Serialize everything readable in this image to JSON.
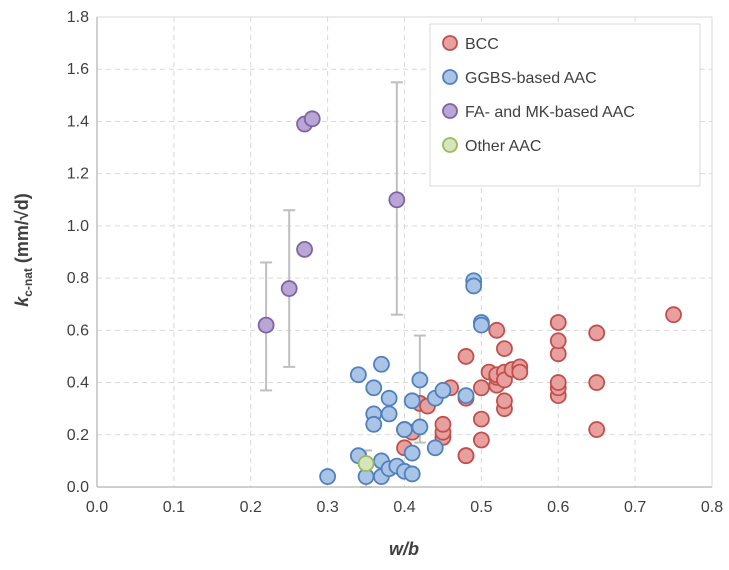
{
  "chart_data": {
    "type": "scatter",
    "xlabel": "w/b",
    "ylabel": {
      "main": "k",
      "sub": "c-nat",
      "unit": " (mm/√d)"
    },
    "xlim": [
      0,
      0.8
    ],
    "ylim": [
      0,
      1.8
    ],
    "xticks": [
      "0.0",
      "0.1",
      "0.2",
      "0.3",
      "0.4",
      "0.5",
      "0.6",
      "0.7",
      "0.8"
    ],
    "yticks": [
      "0.0",
      "0.2",
      "0.4",
      "0.6",
      "0.8",
      "1.0",
      "1.2",
      "1.4",
      "1.6",
      "1.8"
    ],
    "grid": true,
    "legend_position": "top-right",
    "series": [
      {
        "name": "BCC",
        "fill": "#E8A09E",
        "stroke": "#C0504D",
        "points": [
          [
            0.4,
            0.15
          ],
          [
            0.4,
            0.22
          ],
          [
            0.41,
            0.21
          ],
          [
            0.42,
            0.32
          ],
          [
            0.43,
            0.31
          ],
          [
            0.45,
            0.19
          ],
          [
            0.45,
            0.21
          ],
          [
            0.45,
            0.24
          ],
          [
            0.46,
            0.38
          ],
          [
            0.48,
            0.12
          ],
          [
            0.48,
            0.12
          ],
          [
            0.48,
            0.34
          ],
          [
            0.48,
            0.5
          ],
          [
            0.5,
            0.18
          ],
          [
            0.5,
            0.26
          ],
          [
            0.5,
            0.38
          ],
          [
            0.51,
            0.44
          ],
          [
            0.52,
            0.39
          ],
          [
            0.52,
            0.42
          ],
          [
            0.52,
            0.43
          ],
          [
            0.53,
            0.44
          ],
          [
            0.53,
            0.3
          ],
          [
            0.53,
            0.33
          ],
          [
            0.53,
            0.53
          ],
          [
            0.52,
            0.6
          ],
          [
            0.53,
            0.41
          ],
          [
            0.54,
            0.45
          ],
          [
            0.55,
            0.46
          ],
          [
            0.55,
            0.44
          ],
          [
            0.6,
            0.35
          ],
          [
            0.6,
            0.38
          ],
          [
            0.6,
            0.4
          ],
          [
            0.6,
            0.51
          ],
          [
            0.6,
            0.56
          ],
          [
            0.6,
            0.63
          ],
          [
            0.65,
            0.22
          ],
          [
            0.65,
            0.4
          ],
          [
            0.65,
            0.59
          ],
          [
            0.75,
            0.66
          ]
        ]
      },
      {
        "name": "GGBS-based AAC",
        "fill": "#A9C4E6",
        "stroke": "#4F81BD",
        "points": [
          [
            0.3,
            0.04
          ],
          [
            0.34,
            0.43
          ],
          [
            0.34,
            0.12
          ],
          [
            0.35,
            0.04
          ],
          [
            0.36,
            0.38
          ],
          [
            0.36,
            0.28
          ],
          [
            0.36,
            0.24
          ],
          [
            0.37,
            0.47
          ],
          [
            0.37,
            0.04
          ],
          [
            0.37,
            0.1
          ],
          [
            0.38,
            0.34
          ],
          [
            0.38,
            0.28
          ],
          [
            0.38,
            0.07
          ],
          [
            0.39,
            0.08
          ],
          [
            0.4,
            0.06
          ],
          [
            0.4,
            0.22
          ],
          [
            0.41,
            0.33
          ],
          [
            0.41,
            0.05
          ],
          [
            0.41,
            0.13
          ],
          [
            0.42,
            0.41
          ],
          [
            0.42,
            0.23
          ],
          [
            0.44,
            0.34
          ],
          [
            0.44,
            0.15
          ],
          [
            0.45,
            0.37
          ],
          [
            0.48,
            0.35
          ],
          [
            0.49,
            0.79
          ],
          [
            0.49,
            0.77
          ],
          [
            0.5,
            0.63
          ],
          [
            0.5,
            0.62
          ]
        ]
      },
      {
        "name": "FA- and MK-based AAC",
        "fill": "#B9A5D6",
        "stroke": "#8064A2",
        "points": [
          [
            0.22,
            0.62
          ],
          [
            0.25,
            0.76
          ],
          [
            0.27,
            0.91
          ],
          [
            0.27,
            1.39
          ],
          [
            0.28,
            1.41
          ],
          [
            0.39,
            1.1
          ]
        ]
      },
      {
        "name": "Other AAC",
        "fill": "#D7E4BD",
        "stroke": "#9BBB59",
        "points": [
          [
            0.35,
            0.09
          ]
        ]
      }
    ],
    "error_bars": [
      {
        "x": 0.22,
        "low": 0.37,
        "high": 0.86
      },
      {
        "x": 0.25,
        "low": 0.46,
        "high": 1.06
      },
      {
        "x": 0.39,
        "low": 0.66,
        "high": 1.55
      },
      {
        "x": 0.42,
        "low": 0.17,
        "high": 0.58
      },
      {
        "x": 0.35,
        "low": 0.0,
        "high": 0.14
      }
    ]
  }
}
